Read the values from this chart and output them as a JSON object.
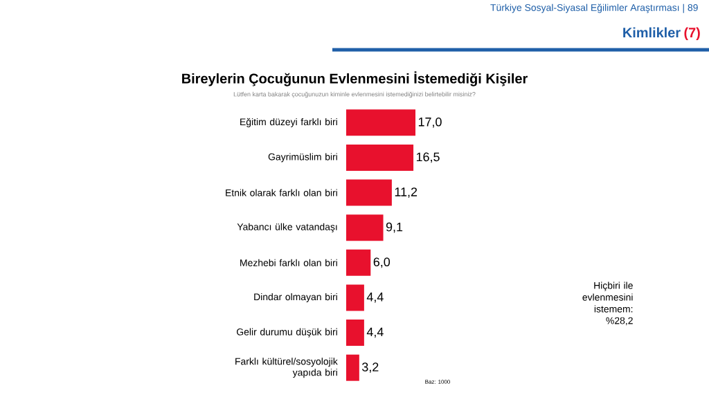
{
  "chart_data": {
    "type": "bar",
    "orientation": "horizontal",
    "title": "Bireylerin Çocuğunun Evlenmesini İstemediği Kişiler",
    "subtitle": "Lütfen karta bakarak çocuğunuzun kiminle evlenmesini istemediğinizi belirtebilir misiniz?",
    "categories": [
      "Eğitim düzeyi farklı biri",
      "Gayrimüslim biri",
      "Etnik olarak farklı olan biri",
      "Yabancı ülke vatandaşı",
      "Mezhebi farklı olan biri",
      "Dindar olmayan biri",
      "Gelir durumu düşük biri",
      "Farklı kültürel/sosyolojik yapıda biri"
    ],
    "values": [
      17.0,
      16.5,
      11.2,
      9.1,
      6.0,
      4.4,
      4.4,
      3.2
    ],
    "value_labels": [
      "17,0",
      "16,5",
      "11,2",
      "9,1",
      "6,0",
      "4,4",
      "4,4",
      "3,2"
    ],
    "color": "#e8112d",
    "annotations": [
      "Türkiye Sosyal-Siyasal Eğilimler Araştırması | 89",
      "Kimlikler",
      "(7)",
      "Hiçbiri ile evlenmesini istemem: %28,2",
      "Baz: 1000"
    ]
  }
}
